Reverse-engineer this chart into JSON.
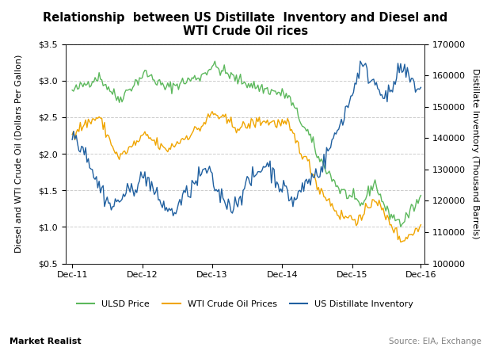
{
  "title": "Relationship  between US Distillate  Inventory and Diesel and\nWTI Crude Oil rices",
  "ylabel_left": "Diesel and WTI Crude Oil (Dollars Per Gallon)",
  "ylabel_right": "Distillate Inventory (Thousand Barrels)",
  "xlabel": "",
  "ylim_left": [
    0.5,
    3.5
  ],
  "ylim_right": [
    100000,
    170000
  ],
  "yticks_left": [
    0.5,
    1.0,
    1.5,
    2.0,
    2.5,
    3.0,
    3.5
  ],
  "ytick_labels_left": [
    "$0.5",
    "$1.0",
    "$1.5",
    "$2.0",
    "$2.5",
    "$3.0",
    "$3.5"
  ],
  "yticks_right": [
    100000,
    110000,
    120000,
    130000,
    140000,
    150000,
    160000,
    170000
  ],
  "ytick_labels_right": [
    "100000",
    "110000",
    "120000",
    "130000",
    "140000",
    "150000",
    "160000",
    "170000"
  ],
  "xtick_labels": [
    "Dec-11",
    "Dec-12",
    "Dec-13",
    "Dec-14",
    "Dec-15",
    "Dec-16"
  ],
  "colors": {
    "ulsd": "#5cb85c",
    "wti": "#f0a500",
    "inventory": "#2060a0"
  },
  "legend_labels": [
    "ULSD Price",
    "WTI Crude Oil Prices",
    "US Distillate Inventory"
  ],
  "watermark": "Market Realist",
  "source": "Source: EIA, Exchange",
  "background_color": "#ffffff",
  "grid_color": "#cccccc"
}
